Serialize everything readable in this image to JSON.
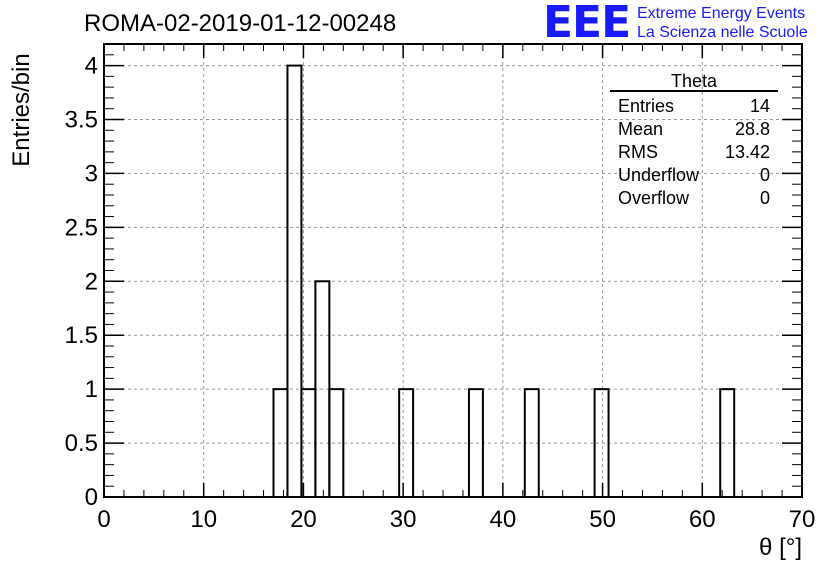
{
  "title": "ROMA-02-2019-01-12-00248",
  "logo": {
    "mark": "EEE",
    "line1": "Extreme Energy Events",
    "line2": "La Scienza nelle Scuole",
    "color": "#1a1aff"
  },
  "stats_box": {
    "name": "Theta",
    "rows": [
      {
        "label": "Entries",
        "value": "14"
      },
      {
        "label": "Mean",
        "value": "28.8"
      },
      {
        "label": "RMS",
        "value": "13.42"
      },
      {
        "label": "Underflow",
        "value": "0"
      },
      {
        "label": "Overflow",
        "value": "0"
      }
    ]
  },
  "chart_data": {
    "type": "bar",
    "title": "ROMA-02-2019-01-12-00248",
    "xlabel": "θ [°]",
    "ylabel": "Entries/bin",
    "xlim": [
      0,
      70
    ],
    "ylim": [
      0,
      4.2
    ],
    "grid": true,
    "x_ticks": [
      "0",
      "10",
      "20",
      "30",
      "40",
      "50",
      "60",
      "70"
    ],
    "y_ticks": [
      "0",
      "0.5",
      "1",
      "1.5",
      "2",
      "2.5",
      "3",
      "3.5",
      "4"
    ],
    "bins": [
      {
        "x0": 17.0,
        "x1": 18.4,
        "value": 1
      },
      {
        "x0": 18.4,
        "x1": 19.8,
        "value": 4
      },
      {
        "x0": 19.8,
        "x1": 21.2,
        "value": 1
      },
      {
        "x0": 21.2,
        "x1": 22.6,
        "value": 2
      },
      {
        "x0": 22.6,
        "x1": 24.0,
        "value": 1
      },
      {
        "x0": 29.6,
        "x1": 31.0,
        "value": 1
      },
      {
        "x0": 36.6,
        "x1": 38.0,
        "value": 1
      },
      {
        "x0": 42.2,
        "x1": 43.6,
        "value": 1
      },
      {
        "x0": 49.2,
        "x1": 50.6,
        "value": 1
      },
      {
        "x0": 61.8,
        "x1": 63.2,
        "value": 1
      }
    ]
  }
}
